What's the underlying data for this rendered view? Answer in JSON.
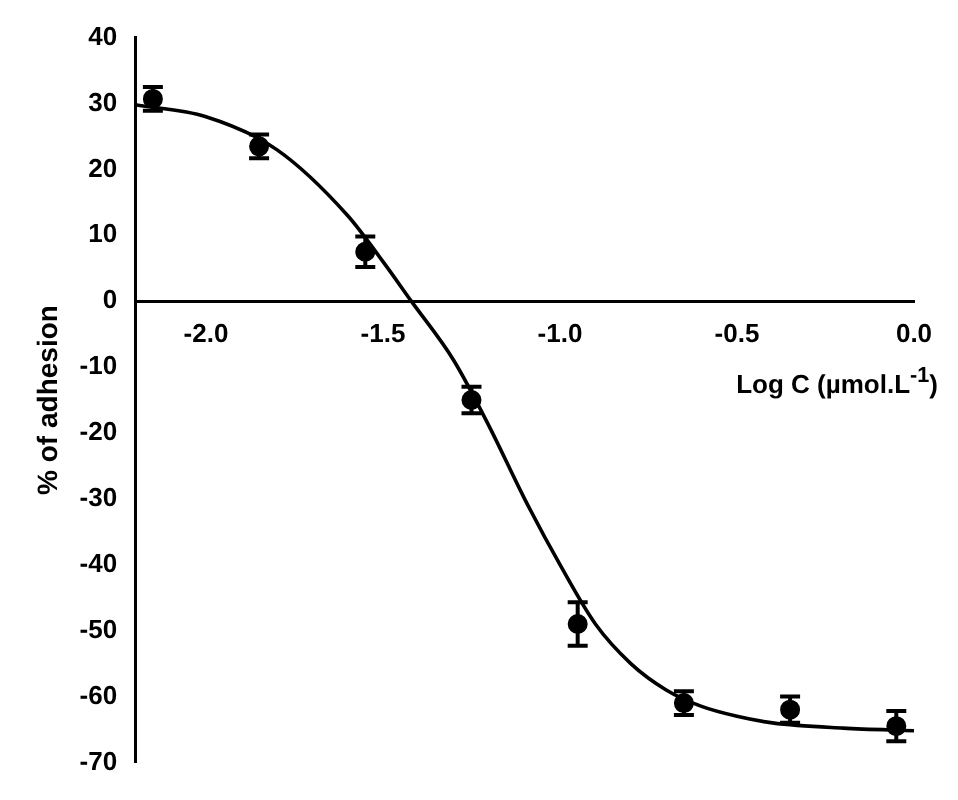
{
  "chart_data": {
    "type": "scatter",
    "xlabel": "Log C (µmol.L$^{-1}$)",
    "ylabel": "% of adhesion",
    "xlim": [
      -2.2,
      0
    ],
    "xticks": [
      {
        "value": -2.0,
        "label": "-2.0"
      },
      {
        "value": -1.5,
        "label": "-1.5"
      },
      {
        "value": -1.0,
        "label": "-1.0"
      },
      {
        "value": -0.5,
        "label": "-0.5"
      },
      {
        "value": 0,
        "label": "0.0"
      }
    ],
    "ylim": [
      -70,
      40
    ],
    "yticks": [
      -70,
      -60,
      -50,
      -40,
      -30,
      -20,
      -10,
      0,
      10,
      20,
      30,
      40
    ],
    "grid": false,
    "legend": false,
    "marker": "circle",
    "series": [
      {
        "color": "#000000",
        "x": [
          -2.15,
          -1.85,
          -1.55,
          -1.25,
          -0.95,
          -0.65,
          -0.35,
          -0.05
        ],
        "values": [
          30.7,
          23.5,
          7.5,
          -15,
          -49,
          -61,
          -62,
          -64.5
        ],
        "errors": [
          1.8,
          1.8,
          2.3,
          2,
          3.3,
          1.8,
          2,
          2.3
        ]
      },
      {
        "type": "line",
        "color": "#000000",
        "marker": "none",
        "line_style": "solid",
        "x": [
          -2.2,
          -2.0,
          -1.8,
          -1.6,
          -1.5,
          -1.42,
          -1.3,
          -1.2,
          -1.1,
          -1.0,
          -0.9,
          -0.8,
          -0.7,
          -0.6,
          -0.5,
          -0.4,
          -0.2,
          0
        ],
        "values": [
          29.8,
          28,
          23,
          13,
          6,
          0,
          -9,
          -19,
          -30,
          -40,
          -49,
          -55,
          -59,
          -61.5,
          -63,
          -64,
          -64.8,
          -65.2
        ]
      }
    ]
  }
}
